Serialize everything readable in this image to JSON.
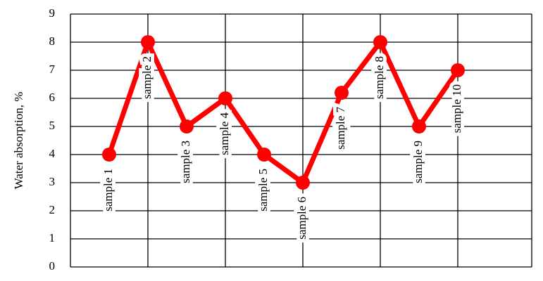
{
  "chart_data": {
    "type": "line",
    "y_label": "Water absorption, %",
    "categories": [
      "sample 1",
      "sample 2",
      "sample 3",
      "sample 4",
      "sample 5",
      "sample 6",
      "sample 7",
      "sample 8",
      "sample 9",
      "sample 10"
    ],
    "values": [
      4,
      8,
      5,
      6,
      4,
      3,
      6.2,
      8,
      5,
      7
    ],
    "color": "#ff0000",
    "ylim": [
      0,
      9
    ],
    "yticks": [
      0,
      1,
      2,
      3,
      4,
      5,
      6,
      7,
      8,
      9
    ],
    "grid": true
  }
}
